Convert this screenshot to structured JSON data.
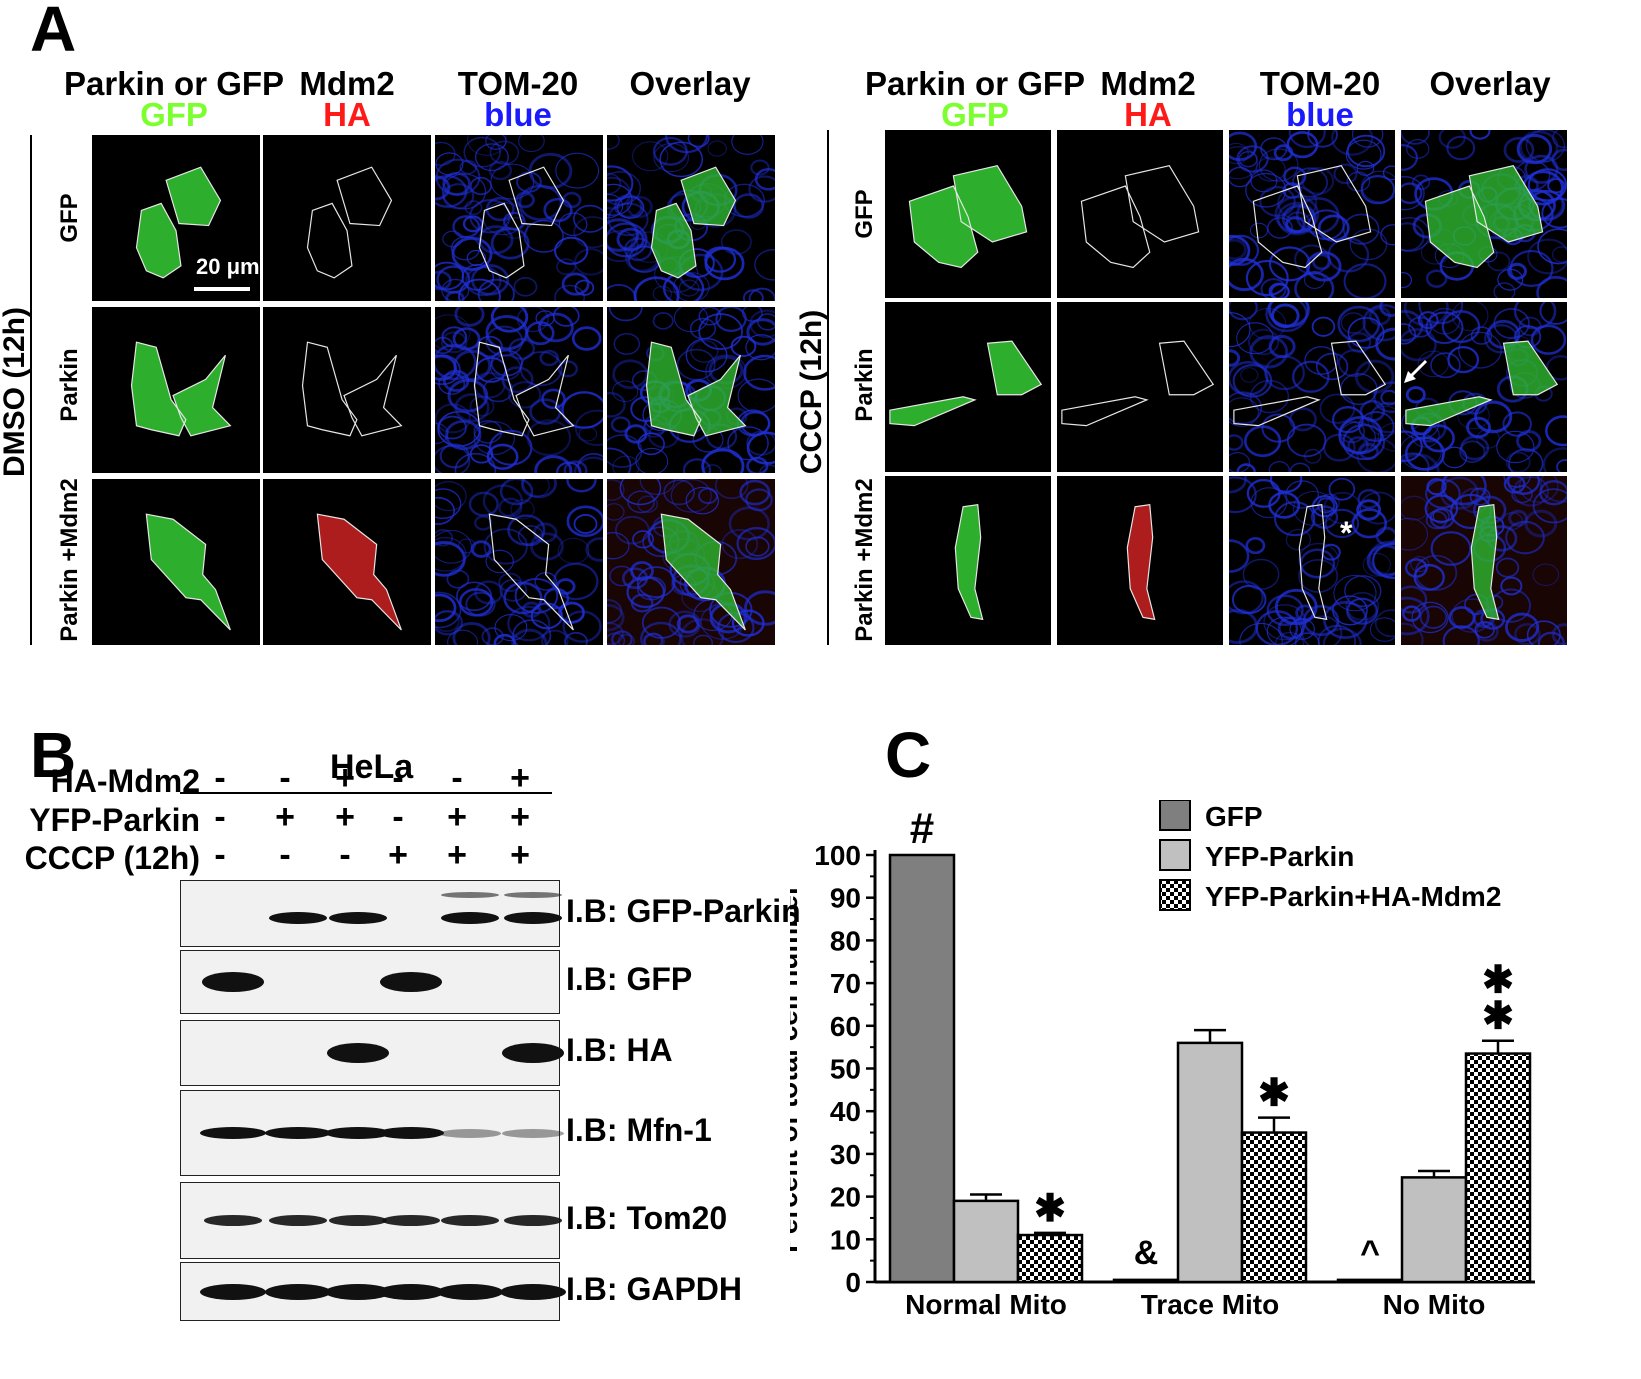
{
  "panel_a": {
    "label": "A",
    "columns": [
      {
        "line1": "Parkin or GFP",
        "line2": "GFP",
        "line2_color": "#7cff2e"
      },
      {
        "line1": "Mdm2",
        "line2": "HA",
        "line2_color": "#ff1a1a"
      },
      {
        "line1": "TOM-20",
        "line2": "blue",
        "line2_color": "#1a1aff"
      },
      {
        "line1": "Overlay",
        "line2": "",
        "line2_color": "#000000"
      }
    ],
    "left_condition": "DMSO (12h)",
    "right_condition": "CCCP (12h)",
    "rows": [
      "GFP",
      "Parkin",
      "Parkin +Mdm2"
    ],
    "scale_bar": "20 μm",
    "asterisk": "*"
  },
  "panel_b": {
    "label": "B",
    "cell_line": "HeLa",
    "treatments": [
      {
        "name": "HA-Mdm2",
        "signs": [
          "-",
          "-",
          "+",
          "-",
          "-",
          "+"
        ]
      },
      {
        "name": "YFP-Parkin",
        "signs": [
          "-",
          "+",
          "+",
          "-",
          "+",
          "+"
        ]
      },
      {
        "name": "CCCP (12h)",
        "signs": [
          "-",
          "-",
          "-",
          "+",
          "+",
          "+"
        ]
      }
    ],
    "blots": [
      {
        "label": "I.B: GFP-Parkin"
      },
      {
        "label": "I.B: GFP"
      },
      {
        "label": "I.B: HA"
      },
      {
        "label": "I.B: Mfn-1"
      },
      {
        "label": "I.B: Tom20"
      },
      {
        "label": "I.B: GAPDH"
      }
    ]
  },
  "panel_c": {
    "label": "C",
    "chart_data": {
      "type": "bar",
      "categories": [
        "Normal Mito",
        "Trace Mito",
        "No Mito"
      ],
      "ylabel": "Percent of total cell number",
      "xlabel": "",
      "ylim": [
        0,
        100
      ],
      "yticks": [
        0,
        10,
        20,
        30,
        40,
        50,
        60,
        70,
        80,
        90,
        100
      ],
      "legend_position": "top-right",
      "series": [
        {
          "name": "GFP",
          "values": [
            100,
            0.5,
            0.5
          ],
          "errors": [
            0,
            0,
            0
          ],
          "color": "#7f7f7f",
          "pattern": "solid"
        },
        {
          "name": "YFP-Parkin",
          "values": [
            19,
            56,
            24.5
          ],
          "errors": [
            1.5,
            3,
            1.5
          ],
          "color": "#c0c0c0",
          "pattern": "solid"
        },
        {
          "name": "YFP-Parkin+HA-Mdm2",
          "values": [
            11,
            35,
            53.5
          ],
          "errors": [
            0.5,
            3.5,
            3
          ],
          "color": "#000000",
          "pattern": "checker"
        }
      ],
      "annotations": [
        {
          "text": "#",
          "category": 0,
          "series": 0
        },
        {
          "text": "✱",
          "category": 0,
          "series": 2
        },
        {
          "text": "&",
          "category": 1,
          "series": 0
        },
        {
          "text": "✱",
          "category": 1,
          "series": 2
        },
        {
          "text": "^",
          "category": 2,
          "series": 0
        },
        {
          "text": "✱",
          "category": 2,
          "series": 2
        },
        {
          "text": "✱",
          "category": 2,
          "series": 2
        }
      ]
    }
  }
}
